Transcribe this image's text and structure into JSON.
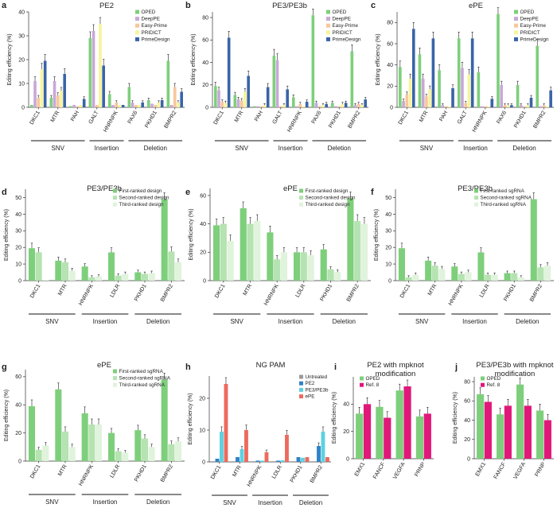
{
  "colors": {
    "OPED": "#7ecf7b",
    "DeepPE": "#c8a8d8",
    "Easy-Prime": "#f7c79b",
    "PRIDICT": "#f6f49a",
    "PrimeDesign": "#3a64a8",
    "rank1": "#7ecf7b",
    "rank2": "#b5e3b1",
    "rank3": "#e0f3dc",
    "Untreated": "#9a9a9a",
    "PE2": "#2f83c8",
    "PE3/PE3b": "#5ed1e0",
    "ePE": "#ec6b5e",
    "Ref. 8": "#e0187a"
  },
  "chart_data": [
    {
      "id": "a",
      "letter": "a",
      "type": "bar",
      "title": "PE2",
      "ylabel": "Editing efficiency (%)",
      "ylim": [
        0,
        40
      ],
      "yticks": [
        0,
        10,
        20,
        30,
        40
      ],
      "categories": [
        "DKC1",
        "MTR",
        "PAH",
        "GALT",
        "HNRNPK",
        "PAX6",
        "PKHD1",
        "BMPR2"
      ],
      "series": [
        {
          "name": "OPED",
          "color_key": "OPED",
          "values": [
            1,
            4,
            0.5,
            29,
            5.5,
            8.5,
            3,
            19.5
          ]
        },
        {
          "name": "DeepPE",
          "color_key": "DeepPE",
          "values": [
            11,
            11,
            1,
            32,
            1,
            2,
            1.5,
            1
          ]
        },
        {
          "name": "Easy-Prime",
          "color_key": "Easy-Prime",
          "values": [
            4,
            5,
            0.5,
            1,
            2,
            1,
            1,
            8.5
          ]
        },
        {
          "name": "PRIDICT",
          "color_key": "PRIDICT",
          "values": [
            16,
            7,
            1,
            35,
            1,
            1,
            2,
            2
          ]
        },
        {
          "name": "PrimeDesign",
          "color_key": "PrimeDesign",
          "values": [
            19.5,
            14,
            3.5,
            17.5,
            1,
            2,
            3,
            6.5
          ]
        }
      ],
      "groups": [
        {
          "label": "SNV",
          "from": 0,
          "to": 2
        },
        {
          "label": "Insertion",
          "from": 3,
          "to": 4
        },
        {
          "label": "Deletion",
          "from": 5,
          "to": 7
        }
      ],
      "legend": "top-right"
    },
    {
      "id": "b",
      "letter": "b",
      "type": "bar",
      "title": "PE3/PE3b",
      "ylabel": "Editing efficiency (%)",
      "ylim": [
        0,
        85
      ],
      "yticks": [
        0,
        20,
        40,
        60,
        80
      ],
      "categories": [
        "DKC1",
        "MTR",
        "PAH",
        "GALT",
        "HNRNPK",
        "PAX6",
        "PKHD1",
        "BMPR2"
      ],
      "series": [
        {
          "name": "OPED",
          "color_key": "OPED",
          "values": [
            19,
            11,
            1,
            46,
            9,
            82,
            4,
            50
          ]
        },
        {
          "name": "DeepPE",
          "color_key": "DeepPE",
          "values": [
            15,
            7,
            1,
            42,
            1,
            4,
            1,
            2
          ]
        },
        {
          "name": "Easy-Prime",
          "color_key": "Easy-Prime",
          "values": [
            5,
            6,
            1,
            1,
            3,
            1,
            1,
            3
          ]
        },
        {
          "name": "PRIDICT",
          "color_key": "PRIDICT",
          "values": [
            4,
            14,
            2,
            2,
            1,
            2,
            3,
            2
          ]
        },
        {
          "name": "PrimeDesign",
          "color_key": "PrimeDesign",
          "values": [
            62,
            28,
            18,
            16,
            5,
            3,
            4,
            7
          ]
        }
      ],
      "groups": [
        {
          "label": "SNV",
          "from": 0,
          "to": 2
        },
        {
          "label": "Insertion",
          "from": 3,
          "to": 4
        },
        {
          "label": "Deletion",
          "from": 5,
          "to": 7
        }
      ],
      "legend": "top-right"
    },
    {
      "id": "c",
      "letter": "c",
      "type": "bar",
      "title": "ePE",
      "ylabel": "Editing efficiency (%)",
      "ylim": [
        0,
        90
      ],
      "yticks": [
        0,
        20,
        40,
        60,
        80
      ],
      "categories": [
        "DKC1",
        "MTR",
        "PAH",
        "GALT",
        "HNRNPK",
        "PAX6",
        "PKHD1",
        "BMPR2"
      ],
      "series": [
        {
          "name": "OPED",
          "color_key": "OPED",
          "values": [
            38,
            50,
            35,
            65,
            33,
            88,
            21,
            58
          ]
        },
        {
          "name": "DeepPE",
          "color_key": "DeepPE",
          "values": [
            6,
            27,
            2,
            37,
            1,
            21,
            2,
            1
          ]
        },
        {
          "name": "Easy-Prime",
          "color_key": "Easy-Prime",
          "values": [
            12,
            10,
            1,
            4,
            1,
            2,
            1,
            2
          ]
        },
        {
          "name": "PRIDICT",
          "color_key": "PRIDICT",
          "values": [
            27,
            17,
            1,
            31,
            1,
            2,
            2,
            1
          ]
        },
        {
          "name": "PrimeDesign",
          "color_key": "PrimeDesign",
          "values": [
            74,
            65,
            18,
            65,
            8,
            2,
            9,
            16
          ]
        }
      ],
      "groups": [
        {
          "label": "SNV",
          "from": 0,
          "to": 2
        },
        {
          "label": "Insertion",
          "from": 3,
          "to": 4
        },
        {
          "label": "Deletion",
          "from": 5,
          "to": 7
        }
      ],
      "legend": "top-right"
    },
    {
      "id": "d",
      "letter": "d",
      "type": "bar",
      "title": "PE3/PE3b",
      "ylabel": "Editing efficiency (%)",
      "ylim": [
        0,
        55
      ],
      "yticks": [
        0,
        10,
        20,
        30,
        40,
        50
      ],
      "categories": [
        "DKC1",
        "MTR",
        "HNRNPK",
        "LDLR",
        "PKHD1",
        "BMPR2"
      ],
      "series": [
        {
          "name": "First-ranked design",
          "color_key": "rank1",
          "values": [
            19.5,
            12,
            8.5,
            17,
            5,
            49
          ]
        },
        {
          "name": "Second-ranked design",
          "color_key": "rank2",
          "values": [
            17,
            11,
            2,
            3,
            4,
            17.5
          ]
        },
        {
          "name": "Third-ranked design",
          "color_key": "rank3",
          "values": [
            0.5,
            6,
            2.5,
            4,
            4.5,
            11
          ]
        }
      ],
      "groups": [
        {
          "label": "SNV",
          "from": 0,
          "to": 1
        },
        {
          "label": "Insertion",
          "from": 2,
          "to": 3
        },
        {
          "label": "Deletion",
          "from": 4,
          "to": 5
        }
      ],
      "legend": "top-right"
    },
    {
      "id": "e",
      "letter": "e",
      "type": "bar",
      "title": "ePE",
      "ylabel": "Editing efficiency (%)",
      "ylim": [
        0,
        65
      ],
      "yticks": [
        0,
        20,
        40,
        60
      ],
      "categories": [
        "DKC1",
        "MTR",
        "HNRNPK",
        "LDLR",
        "PKHD1",
        "BMPR2"
      ],
      "series": [
        {
          "name": "First-ranked design",
          "color_key": "rank1",
          "values": [
            39,
            51,
            34,
            20,
            22,
            58
          ]
        },
        {
          "name": "Second-ranked design",
          "color_key": "rank2",
          "values": [
            40,
            40,
            15,
            20,
            8,
            42
          ]
        },
        {
          "name": "Third-ranked design",
          "color_key": "rank3",
          "values": [
            28,
            42,
            20,
            18,
            6,
            40
          ]
        }
      ],
      "groups": [
        {
          "label": "SNV",
          "from": 0,
          "to": 1
        },
        {
          "label": "Insertion",
          "from": 2,
          "to": 3
        },
        {
          "label": "Deletion",
          "from": 4,
          "to": 5
        }
      ],
      "legend": "top-right"
    },
    {
      "id": "f",
      "letter": "f",
      "type": "bar",
      "title": "PE3/PE3b",
      "ylabel": "Editing efficiency (%)",
      "ylim": [
        0,
        55
      ],
      "yticks": [
        0,
        10,
        20,
        30,
        40,
        50
      ],
      "categories": [
        "DKC1",
        "MTR",
        "HNRNPK",
        "LDLR",
        "PKHD1",
        "BMPR2"
      ],
      "series": [
        {
          "name": "First-ranked sgRNA",
          "color_key": "rank1",
          "values": [
            19.5,
            12,
            8.5,
            17,
            4.5,
            49
          ]
        },
        {
          "name": "Second-ranked sgRNA",
          "color_key": "rank2",
          "values": [
            2,
            9,
            4,
            3.5,
            4.5,
            8
          ]
        },
        {
          "name": "Third-ranked sgRNA",
          "color_key": "rank3",
          "values": [
            3.5,
            7,
            5,
            3.5,
            2,
            9
          ]
        }
      ],
      "groups": [
        {
          "label": "SNV",
          "from": 0,
          "to": 1
        },
        {
          "label": "Insertion",
          "from": 2,
          "to": 3
        },
        {
          "label": "Deletion",
          "from": 4,
          "to": 5
        }
      ],
      "legend": "top-right"
    },
    {
      "id": "g",
      "letter": "g",
      "type": "bar",
      "title": "ePE",
      "ylabel": "Editing efficiency (%)",
      "ylim": [
        0,
        65
      ],
      "yticks": [
        0,
        20,
        40,
        60
      ],
      "categories": [
        "DKC1",
        "MTR",
        "HNRNPK",
        "LDLR",
        "PKHD1",
        "BMPR2"
      ],
      "series": [
        {
          "name": "First-ranked sgRNA",
          "color_key": "rank1",
          "values": [
            39,
            51,
            34,
            20,
            22,
            58
          ]
        },
        {
          "name": "Second-ranked sgRNA",
          "color_key": "rank2",
          "values": [
            8,
            21,
            26,
            7,
            16,
            12
          ]
        },
        {
          "name": "Third-ranked sgRNA",
          "color_key": "rank3",
          "values": [
            11,
            10,
            26,
            6,
            10,
            14
          ]
        }
      ],
      "groups": [
        {
          "label": "SNV",
          "from": 0,
          "to": 1
        },
        {
          "label": "Insertion",
          "from": 2,
          "to": 3
        },
        {
          "label": "Deletion",
          "from": 4,
          "to": 5
        }
      ],
      "legend": "top-right"
    },
    {
      "id": "h",
      "letter": "h",
      "type": "bar",
      "title": "NG PAM",
      "ylabel": "Editing efficiency (%)",
      "ylim": [
        0,
        27
      ],
      "yticks": [
        0,
        10,
        20
      ],
      "categories": [
        "DKC1",
        "MTR",
        "HNRNPK",
        "LDLR",
        "PKHD1",
        "BMPR2"
      ],
      "series": [
        {
          "name": "Untreated",
          "color_key": "Untreated",
          "values": [
            0.2,
            0.2,
            0.2,
            0.2,
            0.2,
            0.2
          ]
        },
        {
          "name": "PE2",
          "color_key": "PE2",
          "values": [
            1,
            1.5,
            0.4,
            0.4,
            1.5,
            5
          ]
        },
        {
          "name": "PE3/PE3b",
          "color_key": "PE3/PE3b",
          "values": [
            9.5,
            4,
            0.4,
            0.5,
            1.3,
            9.5
          ]
        },
        {
          "name": "ePE",
          "color_key": "ePE",
          "values": [
            24.5,
            10,
            3,
            8.5,
            1.5,
            1.5
          ]
        }
      ],
      "groups": [
        {
          "label": "SNV",
          "from": 0,
          "to": 1
        },
        {
          "label": "Insertion",
          "from": 2,
          "to": 3
        },
        {
          "label": "Deletion",
          "from": 4,
          "to": 5
        }
      ],
      "legend": "top-right"
    },
    {
      "id": "i",
      "letter": "i",
      "type": "bar",
      "title": "PE2 with mpknot",
      "title2": "modification",
      "ylabel": "Editing efficiency (%)",
      "ylim": [
        0,
        60
      ],
      "yticks": [
        0,
        20,
        40
      ],
      "categories": [
        "EMX1",
        "FANCF",
        "VEGFA",
        "PRNP"
      ],
      "series": [
        {
          "name": "OPED",
          "color_key": "OPED",
          "values": [
            33,
            38,
            50,
            31
          ]
        },
        {
          "name": "Ref. 8",
          "color_key": "Ref. 8",
          "values": [
            40,
            30,
            53,
            33
          ]
        }
      ],
      "groups": [],
      "legend": "top-left"
    },
    {
      "id": "j",
      "letter": "j",
      "type": "bar",
      "title": "PE3/PE3b with mpknot",
      "title2": "modification",
      "ylabel": "Editing efficiency (%)",
      "ylim": [
        0,
        85
      ],
      "yticks": [
        0,
        20,
        40,
        60,
        80
      ],
      "categories": [
        "EMX1",
        "FANCF",
        "VEGFA",
        "PRNP"
      ],
      "series": [
        {
          "name": "OPED",
          "color_key": "OPED",
          "values": [
            67,
            46,
            77,
            50
          ]
        },
        {
          "name": "Ref. 8",
          "color_key": "Ref. 8",
          "values": [
            59,
            55,
            55,
            40
          ]
        }
      ],
      "groups": [],
      "legend": "top-left"
    }
  ]
}
